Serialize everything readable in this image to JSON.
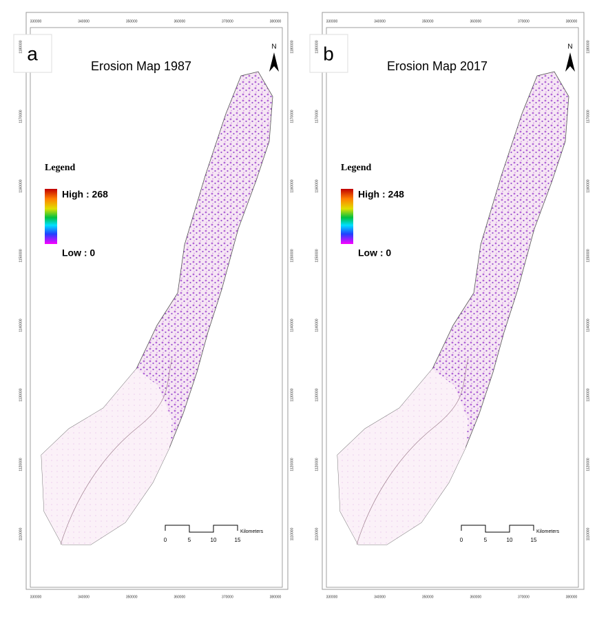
{
  "panels": [
    {
      "label": "a",
      "title": "Erosion Map 1987",
      "north": "N",
      "legend": {
        "title": "Legend",
        "high": "High : 268",
        "low": "Low : 0"
      },
      "scale": {
        "unit": "Kilometers",
        "labels": [
          "0",
          "5",
          "10",
          "15"
        ]
      }
    },
    {
      "label": "b",
      "title": "Erosion Map 2017",
      "north": "N",
      "legend": {
        "title": "Legend",
        "high": "High : 248",
        "low": "Low : 0"
      },
      "scale": {
        "unit": "Kilometers",
        "labels": [
          "0",
          "5",
          "10",
          "15"
        ]
      }
    }
  ],
  "x_ticks": [
    "330000",
    "340000",
    "350000",
    "360000",
    "370000",
    "380000"
  ],
  "y_ticks": [
    "1180000",
    "1170000",
    "1160000",
    "1150000",
    "1140000",
    "1130000",
    "1120000",
    "1110000"
  ]
}
